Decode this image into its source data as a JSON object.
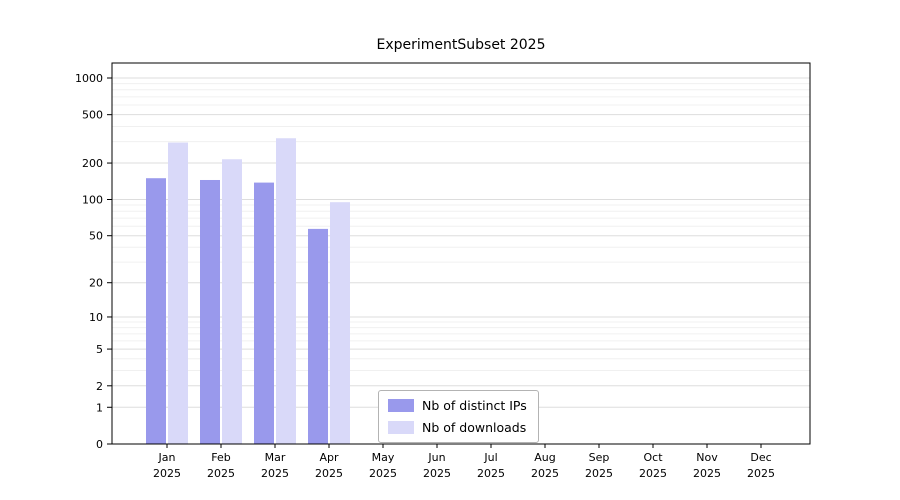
{
  "chart_data": {
    "type": "bar",
    "title": "ExperimentSubset 2025",
    "categories": [
      "Jan",
      "Feb",
      "Mar",
      "Apr",
      "May",
      "Jun",
      "Jul",
      "Aug",
      "Sep",
      "Oct",
      "Nov",
      "Dec"
    ],
    "year_label": "2025",
    "series": [
      {
        "name": "Nb of distinct IPs",
        "color": "#9999ec",
        "values": [
          150,
          145,
          138,
          57,
          0,
          0,
          0,
          0,
          0,
          0,
          0,
          0
        ]
      },
      {
        "name": "Nb of downloads",
        "color": "#d9d9f9",
        "values": [
          295,
          215,
          320,
          95,
          0,
          0,
          0,
          0,
          0,
          0,
          0,
          0
        ]
      }
    ],
    "yscale": "log1p",
    "yticks": [
      0,
      1,
      2,
      5,
      10,
      20,
      50,
      100,
      200,
      500,
      1000
    ],
    "ylim": [
      0,
      1000
    ],
    "grid": true,
    "legend_position": "lower center",
    "axis_color": "#000000",
    "major_grid_color": "#dddddd",
    "minor_grid_color": "#f0f0f0"
  }
}
